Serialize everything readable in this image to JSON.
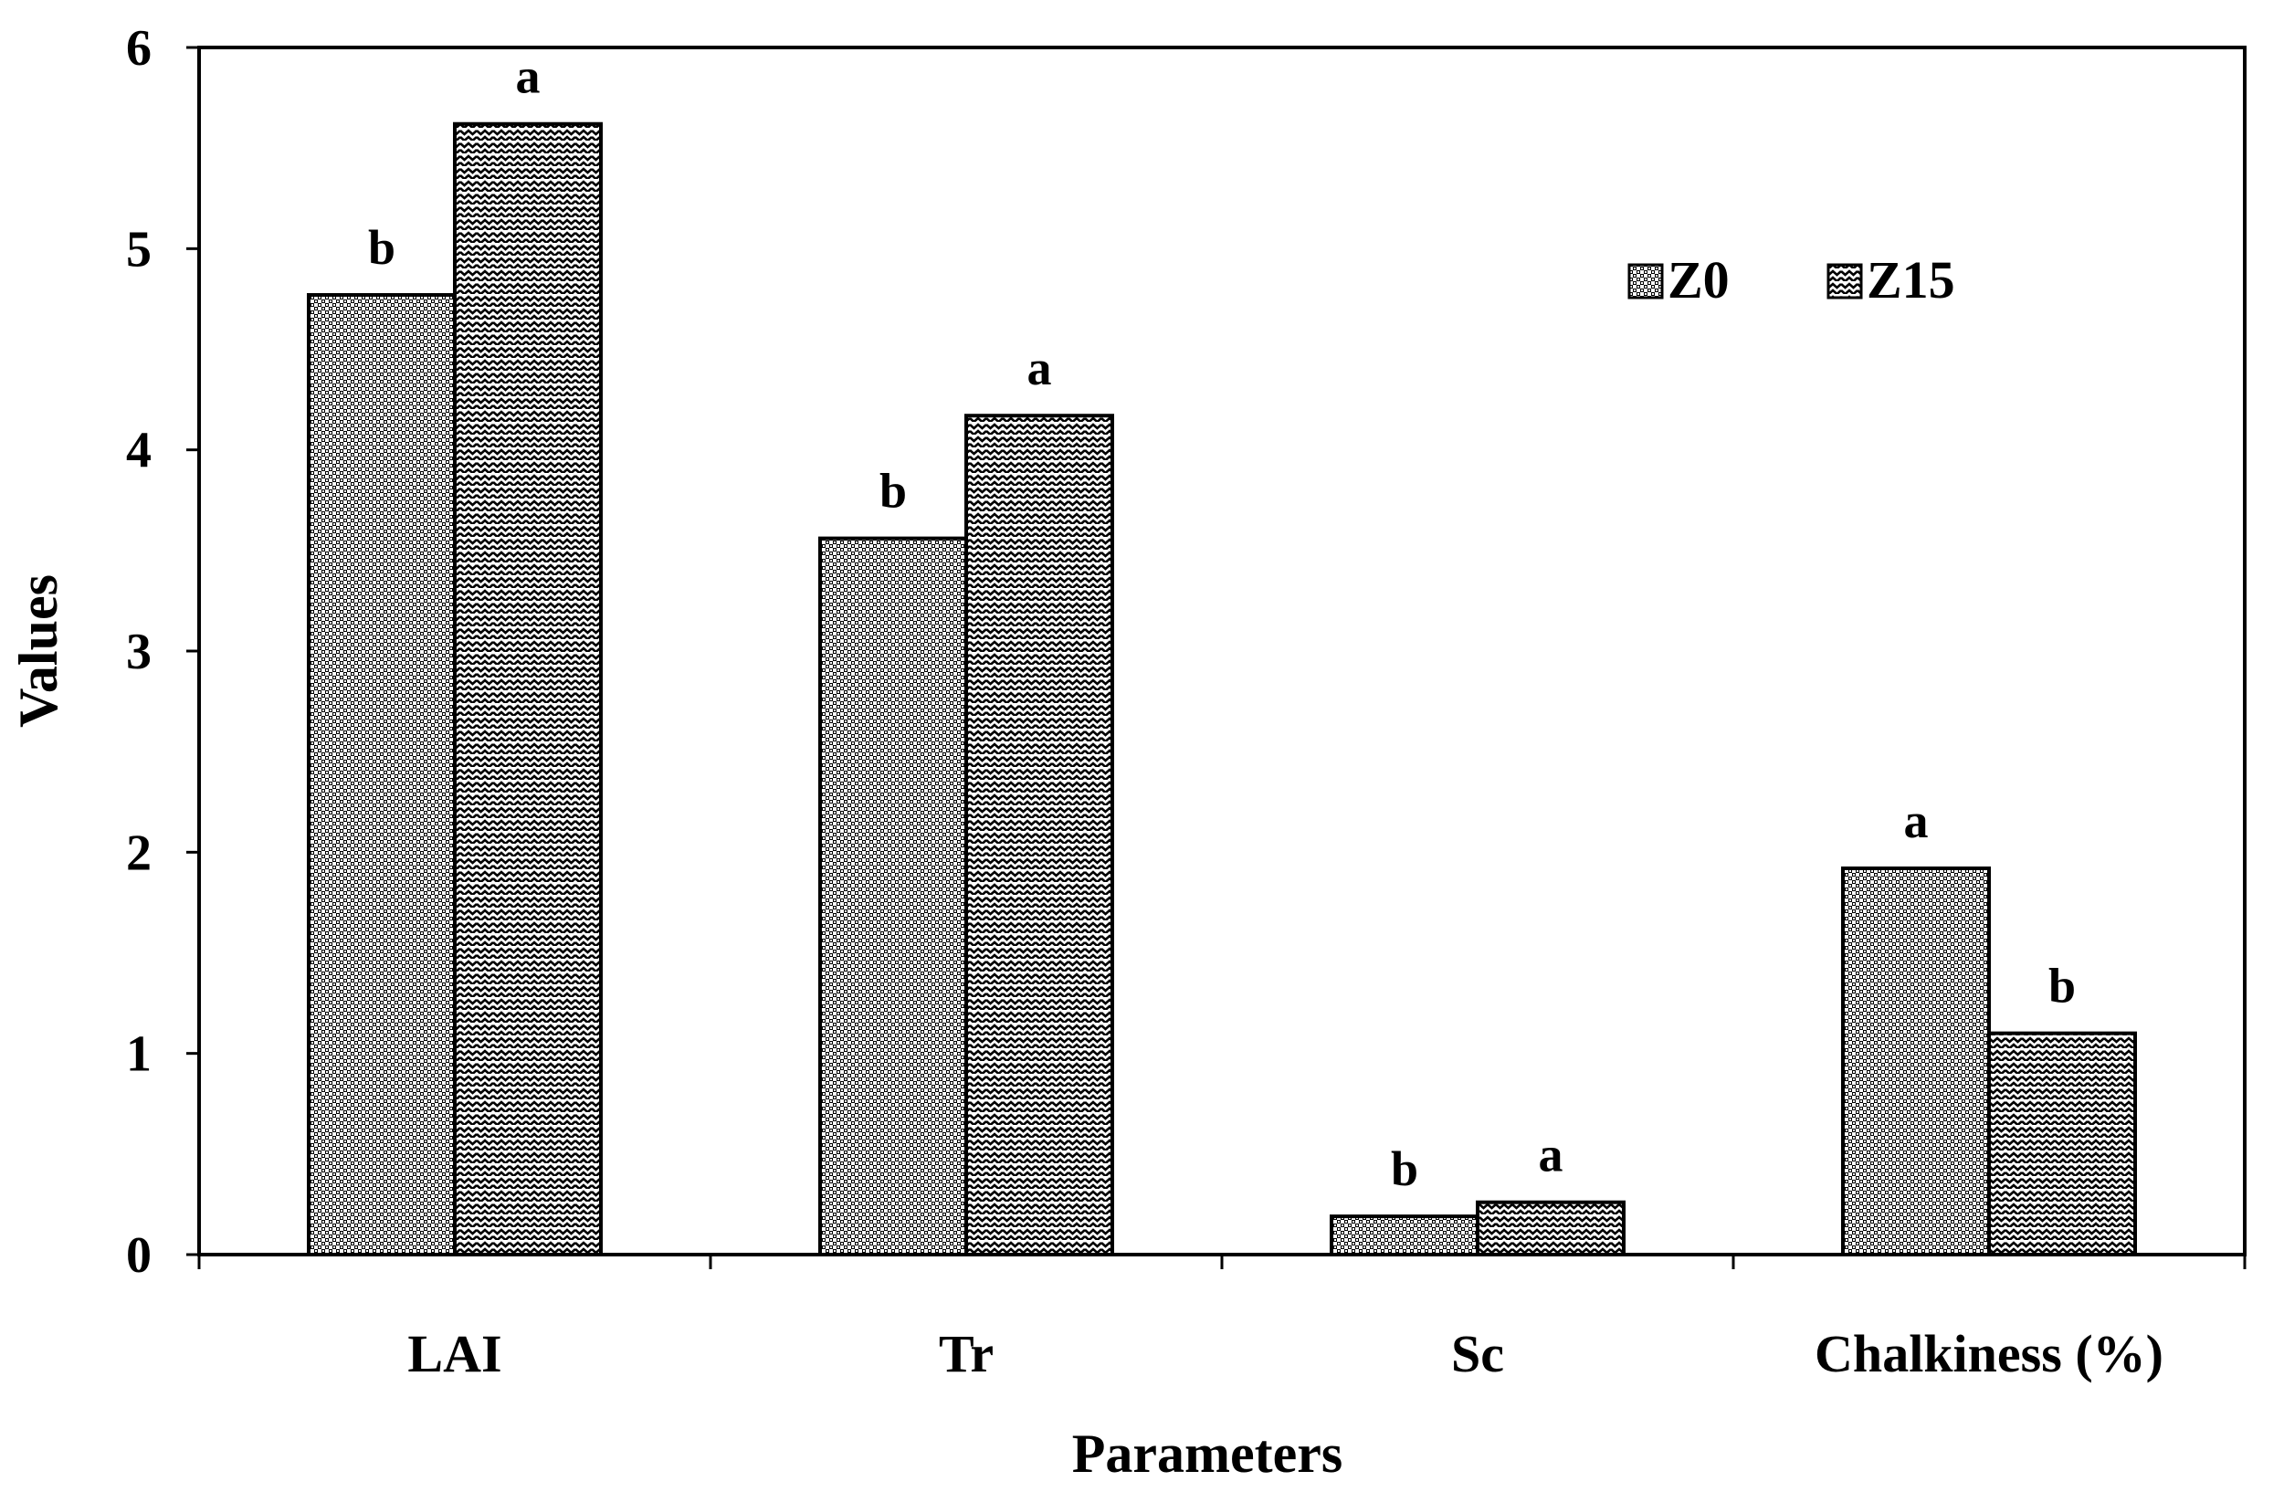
{
  "chart_data": {
    "type": "bar",
    "title": "",
    "xlabel": "Parameters",
    "ylabel": "Values",
    "ylim": [
      0,
      6
    ],
    "yticks": [
      "0",
      "1",
      "2",
      "3",
      "4",
      "5",
      "6"
    ],
    "categories": [
      "LAI",
      "Tr",
      "Sc",
      "Chalkiness (%)"
    ],
    "series": [
      {
        "name": "Z0",
        "pattern": "dots",
        "values": [
          4.77,
          3.56,
          0.19,
          1.92
        ],
        "labels": [
          "b",
          "b",
          "b",
          "a"
        ]
      },
      {
        "name": "Z15",
        "pattern": "zigzag",
        "values": [
          5.62,
          4.17,
          0.26,
          1.1
        ],
        "labels": [
          "a",
          "a",
          "a",
          "b"
        ]
      }
    ],
    "legend": "top-right",
    "grid": false
  }
}
